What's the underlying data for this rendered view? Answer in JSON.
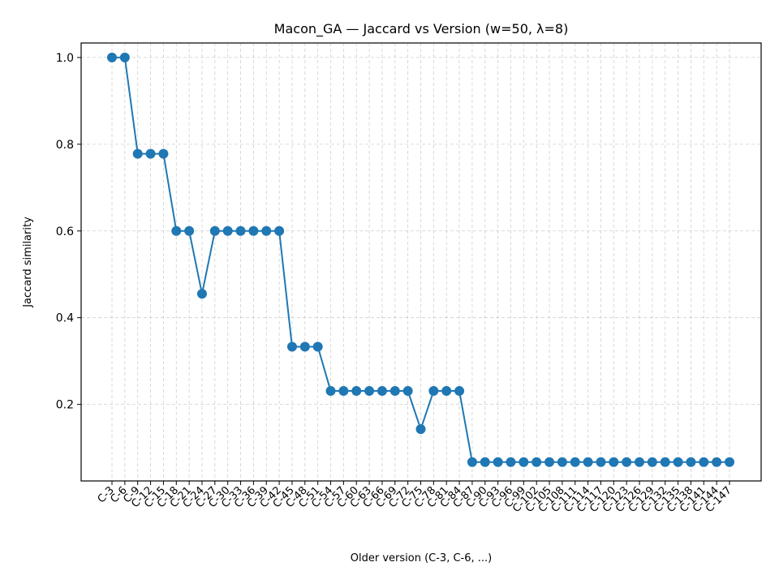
{
  "chart_data": {
    "type": "line",
    "title": "Macon_GA — Jaccard vs Version (w=50, λ=8)",
    "xlabel": "Older version (C-3, C-6, ...)",
    "ylabel": "Jaccard similarity",
    "categories": [
      "C-3",
      "C-6",
      "C-9",
      "C-12",
      "C-15",
      "C-18",
      "C-21",
      "C-24",
      "C-27",
      "C-30",
      "C-33",
      "C-36",
      "C-39",
      "C-42",
      "C-45",
      "C-48",
      "C-51",
      "C-54",
      "C-57",
      "C-60",
      "C-63",
      "C-66",
      "C-69",
      "C-72",
      "C-75",
      "C-78",
      "C-81",
      "C-84",
      "C-87",
      "C-90",
      "C-93",
      "C-96",
      "C-99",
      "C-102",
      "C-105",
      "C-108",
      "C-111",
      "C-114",
      "C-117",
      "C-120",
      "C-123",
      "C-126",
      "C-129",
      "C-132",
      "C-135",
      "C-138",
      "C-141",
      "C-144",
      "C-147"
    ],
    "series": [
      {
        "values": [
          1.0,
          1.0,
          0.778,
          0.778,
          0.778,
          0.6,
          0.6,
          0.455,
          0.6,
          0.6,
          0.6,
          0.6,
          0.6,
          0.6,
          0.333,
          0.333,
          0.333,
          0.231,
          0.231,
          0.231,
          0.231,
          0.231,
          0.231,
          0.231,
          0.143,
          0.231,
          0.231,
          0.231,
          0.067,
          0.067,
          0.067,
          0.067,
          0.067,
          0.067,
          0.067,
          0.067,
          0.067,
          0.067,
          0.067,
          0.067,
          0.067,
          0.067,
          0.067,
          0.067,
          0.067,
          0.067,
          0.067,
          0.067,
          0.067
        ],
        "color": "#1f77b4"
      }
    ],
    "yticks": [
      0.2,
      0.4,
      0.6,
      0.8,
      1.0
    ],
    "ylim": [
      0.0235,
      1.0335
    ],
    "grid": true,
    "legend": "none",
    "marker": "circle"
  }
}
